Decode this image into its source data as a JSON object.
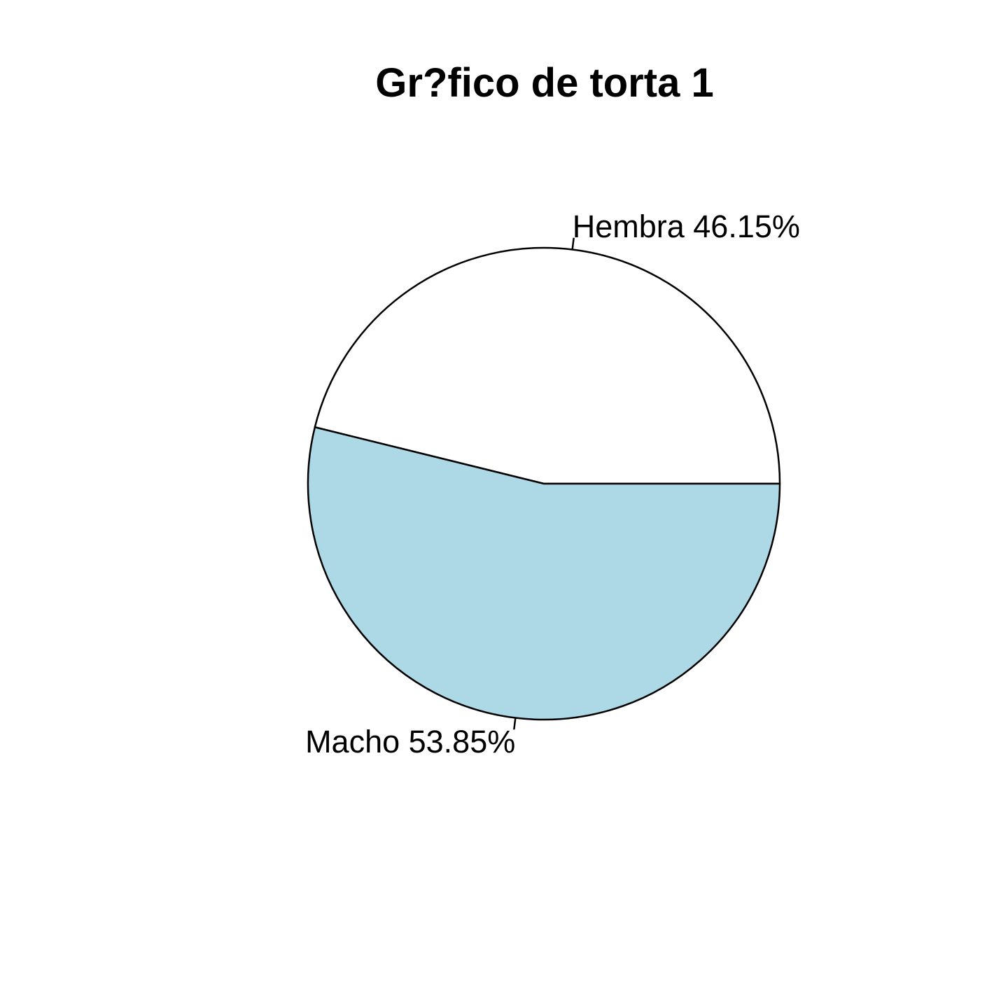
{
  "chart_data": {
    "type": "pie",
    "title": "Gr?fico de torta 1",
    "start_angle_deg": 0,
    "direction": "counterclockwise",
    "slices": [
      {
        "name": "Hembra",
        "value": 46.15,
        "label": "Hembra 46.15%",
        "color": "#ffffff"
      },
      {
        "name": "Macho",
        "value": 53.85,
        "label": "Macho 53.85%",
        "color": "#add8e6"
      }
    ]
  }
}
